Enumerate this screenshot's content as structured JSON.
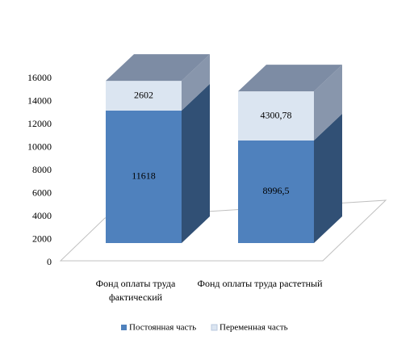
{
  "chart_data": {
    "type": "bar3d_stacked",
    "categories": [
      "Фонд оплаты труда фактический",
      "Фонд оплаты труда растетный"
    ],
    "series": [
      {
        "name": "Постоянная часть",
        "color": "#4f81bd",
        "values": [
          11618,
          8996.5
        ],
        "value_labels": [
          "11618",
          "8996,5"
        ]
      },
      {
        "name": "Переменная часть",
        "color": "#dbe5f1",
        "values": [
          2602,
          4300.78
        ],
        "value_labels": [
          "2602",
          "4300,78"
        ]
      }
    ],
    "ylim": [
      0,
      16000
    ],
    "yticks": [
      0,
      2000,
      4000,
      6000,
      8000,
      10000,
      12000,
      14000,
      16000
    ],
    "legend": "bottom"
  }
}
